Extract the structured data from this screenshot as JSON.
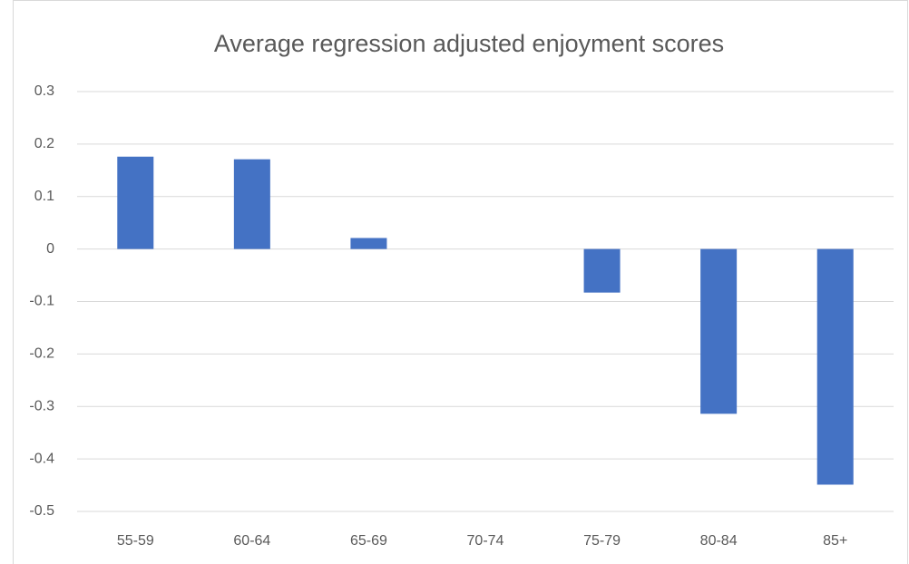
{
  "chart_data": {
    "type": "bar",
    "title": "Average  regression adjusted enjoyment scores",
    "categories": [
      "55-59",
      "60-64",
      "65-69",
      "70-74",
      "75-79",
      "80-84",
      "85+"
    ],
    "values": [
      0.176,
      0.171,
      0.021,
      0,
      -0.083,
      -0.314,
      -0.449
    ],
    "color": "#4472c4",
    "ylim": [
      -0.5,
      0.3
    ],
    "yticks": [
      0.3,
      0.2,
      0.1,
      0,
      -0.1,
      -0.2,
      -0.3,
      -0.4,
      -0.5
    ],
    "grid": true
  }
}
